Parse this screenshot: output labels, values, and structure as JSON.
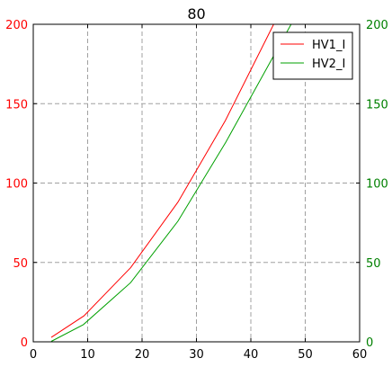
{
  "chart_data": {
    "type": "line",
    "title": "80",
    "xlim": [
      0,
      60
    ],
    "ylim": [
      0,
      200
    ],
    "ylim_right": [
      0,
      200
    ],
    "x_ticks": [
      "0",
      "10",
      "20",
      "30",
      "40",
      "50",
      "60"
    ],
    "y_ticks_left": [
      "0",
      "50",
      "100",
      "150",
      "200"
    ],
    "y_ticks_right": [
      "0",
      "50",
      "100",
      "150",
      "200"
    ],
    "grid": true,
    "legend_position": "top-right",
    "colors": {
      "left_axis": "#ff0000",
      "right_axis": "#008000"
    },
    "series": [
      {
        "name": "HV1_I",
        "color": "#ff0000",
        "x": [
          3.3,
          9.3,
          17.9,
          26.6,
          35.3,
          44.2
        ],
        "y": [
          2.8,
          16.3,
          46.7,
          88.0,
          139.3,
          200.0
        ]
      },
      {
        "name": "HV2_I",
        "color": "#00a000",
        "x": [
          3.3,
          9.2,
          17.9,
          26.6,
          35.4,
          47.4
        ],
        "y": [
          0.3,
          10.8,
          37.3,
          76.0,
          125.8,
          200.0
        ]
      }
    ]
  }
}
